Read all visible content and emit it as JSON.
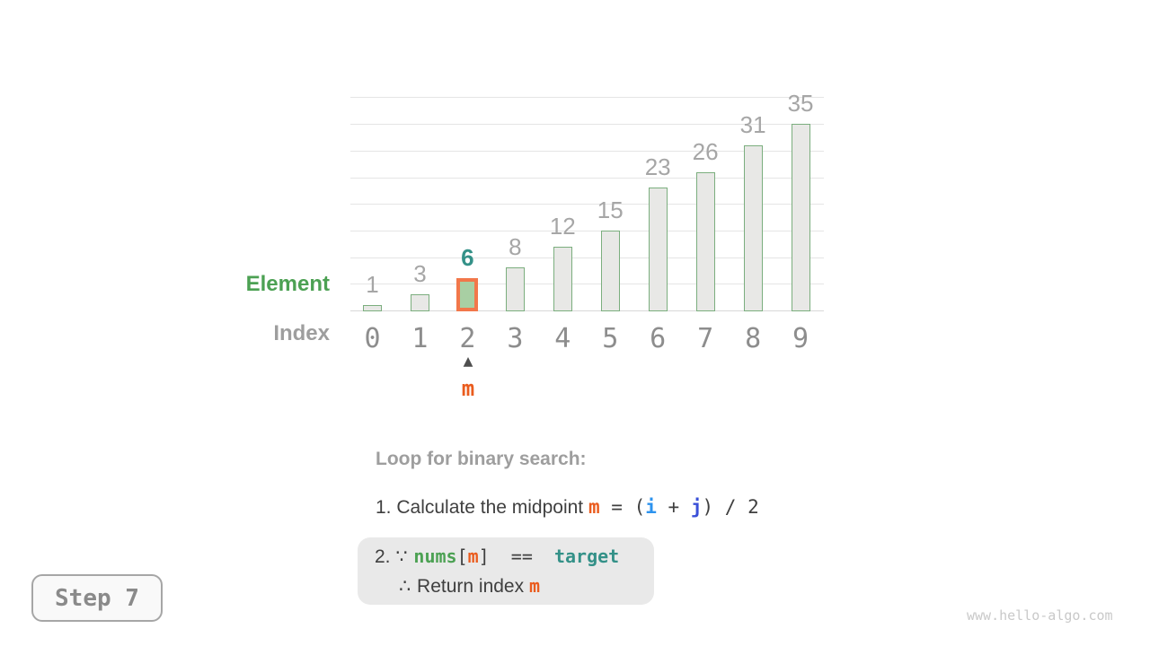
{
  "watermark": "www.hello-algo.com",
  "step": {
    "label": "Step 7"
  },
  "chart_data": {
    "type": "bar",
    "categories": [
      "0",
      "1",
      "2",
      "3",
      "4",
      "5",
      "6",
      "7",
      "8",
      "9"
    ],
    "values": [
      1,
      3,
      6,
      8,
      12,
      15,
      23,
      26,
      31,
      35
    ],
    "highlight_index": 2,
    "ylim": [
      0,
      40
    ],
    "gridline_step": 5,
    "grid": true,
    "legend_position": "none",
    "xlabel": "Index",
    "ylabel": "Element",
    "row_labels": {
      "element": "Element",
      "index": "Index"
    },
    "pointer": {
      "index": 2,
      "arrow_icon": "▲",
      "label": "m"
    }
  },
  "annotation": {
    "title": "Loop for binary search:",
    "line1": {
      "prefix": "1. Calculate the midpoint ",
      "m": "m",
      "eq": " = ",
      "open_paren": "(",
      "i": "i",
      "plus": " + ",
      "j": "j",
      "close_paren": ")",
      "slash": " / ",
      "two": "2"
    },
    "line2": {
      "num": "2. ",
      "because": "∵ ",
      "nums": "nums",
      "open_bracket": "[",
      "m": "m",
      "close_bracket": "]",
      "eq": "  ==  ",
      "target": "target"
    },
    "line3": {
      "therefore": "∴ ",
      "text": "Return index ",
      "m": "m"
    }
  },
  "colors": {
    "bar_fill": "#e8e8e6",
    "bar_border": "#7bae7e",
    "highlight_fill": "#a8cfa3",
    "highlight_border": "#f2774a",
    "value_label": "#a6a6a6",
    "highlight_value_label": "#349188",
    "index_label": "#8d8d8d",
    "teal": "#349188",
    "green": "#4ca153",
    "orange": "#ea5c1e",
    "blue_i": "#2d93ee",
    "blue_j": "#3a50d8",
    "gray_text": "#9e9e9e",
    "dark_text": "#3f3f3f",
    "gridline": "#e5e5e5",
    "baseline": "#d8d8d8",
    "box_bg": "#e9e9e9",
    "arrow": "#4f4f4f"
  }
}
